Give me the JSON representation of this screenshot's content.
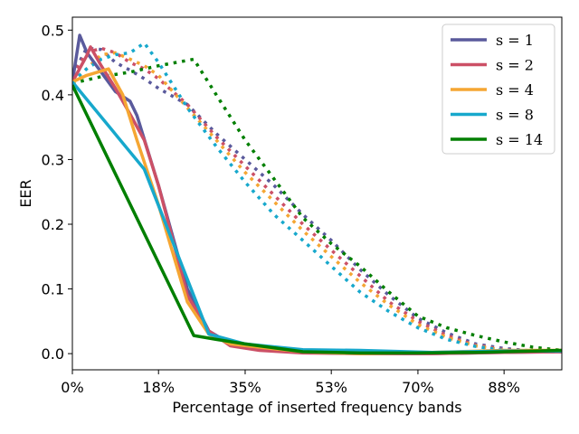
{
  "chart_data": {
    "type": "line",
    "title": "",
    "xlabel": "Percentage of inserted frequency bands",
    "ylabel": "EER",
    "xlim": [
      0,
      100
    ],
    "ylim": [
      -0.025,
      0.52
    ],
    "x_tick_values": [
      0,
      17.6,
      35.3,
      52.9,
      70.6,
      88.2
    ],
    "x_tick_labels": [
      "0%",
      "18%",
      "35%",
      "53%",
      "70%",
      "88%"
    ],
    "y_tick_values": [
      0.0,
      0.1,
      0.2,
      0.3,
      0.4,
      0.5
    ],
    "y_tick_labels": [
      "0.0",
      "0.1",
      "0.2",
      "0.3",
      "0.4",
      "0.5"
    ],
    "grid": false,
    "legend_position": "top-right",
    "legend": [
      "s = 1",
      "s = 2",
      "s = 4",
      "s = 8",
      "s = 14"
    ],
    "series": [
      {
        "name": "s = 1",
        "color": "#5a5a9c",
        "solid": {
          "x": [
            0,
            1.5,
            3.0,
            5.9,
            8.8,
            11.8,
            13.2,
            17.6,
            23.5,
            27.9,
            32.3,
            38.2,
            47.1,
            58.8,
            73.5,
            88.2,
            100
          ],
          "y": [
            0.42,
            0.492,
            0.465,
            0.435,
            0.405,
            0.39,
            0.368,
            0.26,
            0.1,
            0.035,
            0.015,
            0.006,
            0.002,
            0.0,
            0.0,
            0.002,
            0.003
          ]
        },
        "dotted": {
          "x": [
            0,
            2.9,
            5.9,
            8.8,
            11.8,
            14.7,
            17.6,
            23.5,
            29.4,
            35.3,
            41.2,
            47.1,
            52.9,
            58.8,
            64.7,
            70.6,
            76.5,
            82.4,
            88.2,
            94.1,
            100
          ],
          "y": [
            0.43,
            0.472,
            0.47,
            0.45,
            0.438,
            0.425,
            0.41,
            0.385,
            0.34,
            0.3,
            0.26,
            0.215,
            0.175,
            0.13,
            0.09,
            0.055,
            0.032,
            0.015,
            0.008,
            0.004,
            0.003
          ]
        }
      },
      {
        "name": "s = 2",
        "color": "#cc5066",
        "solid": {
          "x": [
            0,
            2.9,
            3.7,
            5.9,
            8.8,
            11.8,
            14.7,
            17.6,
            23.5,
            27.9,
            32.3,
            38.2,
            47.1,
            58.8,
            73.5,
            88.2,
            100
          ],
          "y": [
            0.42,
            0.46,
            0.474,
            0.445,
            0.41,
            0.37,
            0.33,
            0.26,
            0.09,
            0.035,
            0.012,
            0.005,
            0.001,
            0.0,
            0.0,
            0.002,
            0.003
          ]
        },
        "dotted": {
          "x": [
            0,
            2.9,
            5.9,
            8.8,
            11.8,
            14.7,
            17.6,
            23.5,
            29.4,
            35.3,
            41.2,
            47.1,
            52.9,
            58.8,
            64.7,
            70.6,
            76.5,
            82.4,
            88.2,
            94.1,
            100
          ],
          "y": [
            0.43,
            0.465,
            0.472,
            0.465,
            0.45,
            0.44,
            0.425,
            0.385,
            0.335,
            0.29,
            0.245,
            0.2,
            0.16,
            0.12,
            0.08,
            0.05,
            0.028,
            0.013,
            0.006,
            0.003,
            0.003
          ]
        }
      },
      {
        "name": "s = 4",
        "color": "#f5a633",
        "solid": {
          "x": [
            0,
            2.9,
            7.4,
            10.3,
            13.2,
            17.6,
            23.5,
            27.9,
            32.3,
            38.2,
            47.1,
            58.8,
            73.5,
            88.2,
            100
          ],
          "y": [
            0.42,
            0.43,
            0.44,
            0.4,
            0.33,
            0.23,
            0.08,
            0.03,
            0.015,
            0.01,
            0.003,
            0.0,
            0.002,
            0.005,
            0.005
          ]
        },
        "dotted": {
          "x": [
            0,
            2.9,
            5.9,
            8.8,
            11.8,
            14.7,
            17.6,
            23.5,
            29.4,
            35.3,
            41.2,
            47.1,
            52.9,
            58.8,
            64.7,
            70.6,
            76.5,
            82.4,
            88.2,
            94.1,
            100
          ],
          "y": [
            0.42,
            0.44,
            0.462,
            0.465,
            0.455,
            0.445,
            0.43,
            0.38,
            0.33,
            0.28,
            0.235,
            0.19,
            0.15,
            0.11,
            0.075,
            0.045,
            0.025,
            0.012,
            0.005,
            0.003,
            0.003
          ]
        }
      },
      {
        "name": "s = 8",
        "color": "#17a8cc",
        "solid": {
          "x": [
            0,
            14.7,
            27.9,
            35.3,
            47.1,
            58.8,
            73.5,
            88.2,
            100
          ],
          "y": [
            0.42,
            0.285,
            0.03,
            0.015,
            0.006,
            0.005,
            0.002,
            0.004,
            0.004
          ]
        },
        "dotted": {
          "x": [
            0,
            2.9,
            5.9,
            8.8,
            11.8,
            14.7,
            17.6,
            23.5,
            29.4,
            35.3,
            41.2,
            47.1,
            52.9,
            58.8,
            64.7,
            70.6,
            76.5,
            82.4,
            88.2,
            94.1,
            100
          ],
          "y": [
            0.42,
            0.44,
            0.455,
            0.462,
            0.465,
            0.48,
            0.45,
            0.38,
            0.32,
            0.265,
            0.215,
            0.175,
            0.135,
            0.095,
            0.065,
            0.04,
            0.022,
            0.011,
            0.005,
            0.003,
            0.003
          ]
        }
      },
      {
        "name": "s = 14",
        "color": "#007f00",
        "solid": {
          "x": [
            0,
            24.8,
            29.4,
            35.3,
            47.1,
            58.8,
            70.6,
            82.4,
            100
          ],
          "y": [
            0.415,
            0.028,
            0.022,
            0.015,
            0.003,
            0.001,
            0.001,
            0.002,
            0.005
          ]
        },
        "dotted": {
          "x": [
            0,
            5.9,
            11.8,
            17.6,
            24.8,
            29.4,
            35.3,
            41.2,
            47.1,
            52.9,
            58.8,
            64.7,
            70.6,
            76.5,
            82.4,
            88.2,
            94.1,
            100
          ],
          "y": [
            0.418,
            0.428,
            0.435,
            0.445,
            0.455,
            0.4,
            0.33,
            0.27,
            0.21,
            0.17,
            0.135,
            0.095,
            0.058,
            0.04,
            0.028,
            0.018,
            0.01,
            0.005
          ]
        }
      }
    ]
  }
}
